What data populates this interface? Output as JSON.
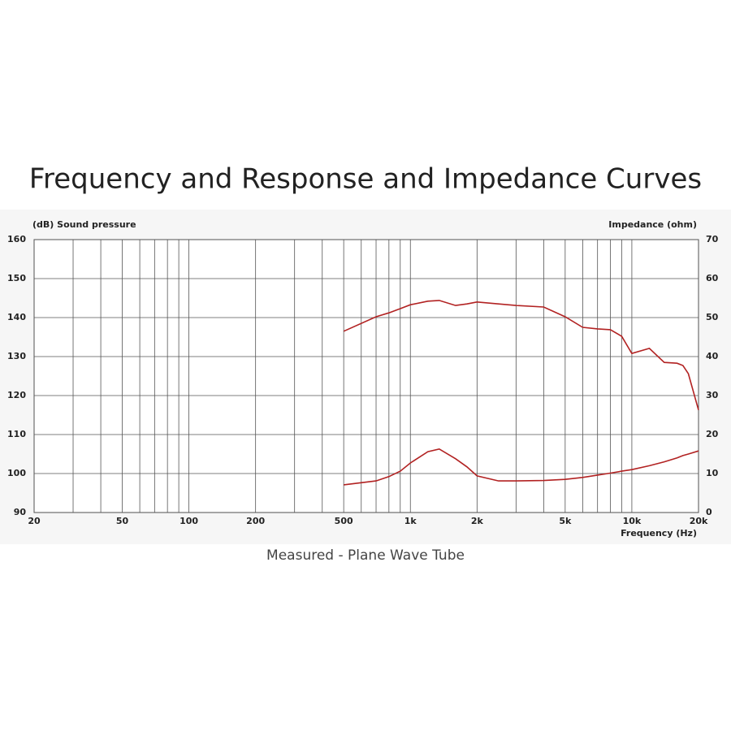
{
  "chart_data": {
    "type": "line",
    "title": "Frequency and Response and Impedance Curves",
    "caption": "Measured - Plane Wave Tube",
    "ylabel": "(dB)  Sound pressure",
    "y2label": "Impedance  (ohm)",
    "xlabel": "Frequency  (Hz)",
    "xscale": "log",
    "grid": true,
    "xlim": [
      20,
      20000
    ],
    "xticks": [
      20,
      50,
      100,
      200,
      500,
      {
        "value": 1000,
        "label": "1k"
      },
      {
        "value": 2000,
        "label": "2k"
      },
      {
        "value": 5000,
        "label": "5k"
      },
      {
        "value": 10000,
        "label": "10k"
      },
      {
        "value": 20000,
        "label": "20k"
      }
    ],
    "x_minor_ticks": [
      30,
      40,
      60,
      70,
      80,
      90,
      300,
      400,
      600,
      700,
      800,
      900,
      3000,
      4000,
      6000,
      7000,
      8000,
      9000
    ],
    "ylim": [
      90,
      160
    ],
    "yticks": [
      90,
      100,
      110,
      120,
      130,
      140,
      150,
      160
    ],
    "y2lim": [
      0,
      70
    ],
    "y2ticks": [
      0,
      10,
      20,
      30,
      40,
      50,
      60,
      70
    ],
    "x": [
      500,
      700,
      800,
      900,
      1000,
      1200,
      1350,
      1600,
      1800,
      2000,
      2500,
      3000,
      4000,
      5000,
      6000,
      7000,
      8000,
      9000,
      10000,
      12000,
      14000,
      16000,
      17000,
      18000,
      20000
    ],
    "series": [
      {
        "color": "#b22222",
        "values": [
          136.5,
          140.2,
          141.2,
          142.3,
          143.3,
          144.2,
          144.4,
          143.1,
          143.5,
          144,
          143.5,
          143.1,
          142.7,
          140.2,
          137.5,
          137.1,
          136.9,
          135.2,
          130.8,
          132.1,
          128.5,
          128.3,
          127.7,
          125.6,
          116.3
        ]
      },
      {
        "color": "#b22222",
        "axis": "y2",
        "values": [
          7.1,
          8.1,
          9.2,
          10.6,
          12.7,
          15.6,
          16.3,
          13.8,
          11.7,
          9.4,
          8.1,
          8.1,
          8.2,
          8.5,
          9.0,
          9.6,
          10.1,
          10.6,
          11,
          12,
          13,
          14,
          14.6,
          15,
          15.8
        ]
      }
    ]
  }
}
